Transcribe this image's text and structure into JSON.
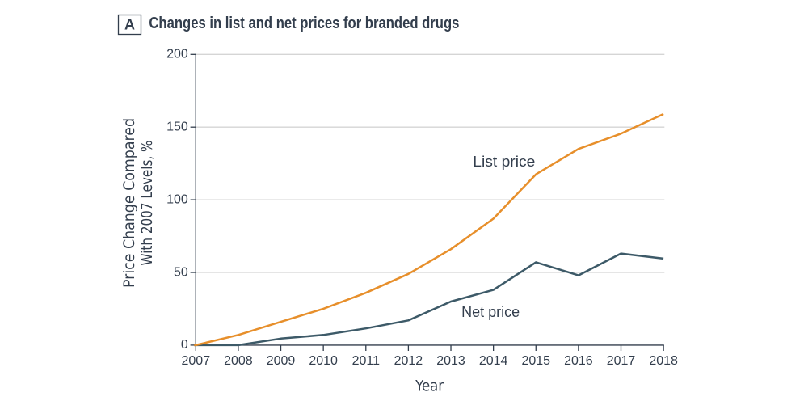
{
  "figure": {
    "panel_label": "A",
    "title": "Changes in list and net prices for branded drugs"
  },
  "chart_data": {
    "type": "line",
    "title": "Changes in list and net prices for branded drugs",
    "xlabel": "Year",
    "ylabel_lines": [
      "Price Change Compared",
      "With 2007 Levels, %"
    ],
    "x": [
      2007,
      2008,
      2009,
      2010,
      2011,
      2012,
      2013,
      2014,
      2015,
      2016,
      2017,
      2018
    ],
    "series": [
      {
        "name": "List price",
        "color": "#e78f2b",
        "values": [
          0,
          7,
          16,
          25,
          36,
          49,
          66,
          87,
          117.5,
          135,
          145.5,
          159
        ]
      },
      {
        "name": "Net price",
        "color": "#3d5a68",
        "values": [
          0,
          0,
          4.5,
          7,
          11.5,
          17,
          30,
          38,
          57,
          48,
          63,
          59.5
        ]
      }
    ],
    "xlim": [
      2007,
      2018
    ],
    "ylim": [
      0,
      200
    ],
    "yticks": [
      0,
      50,
      100,
      150,
      200
    ],
    "xticks": [
      2007,
      2008,
      2009,
      2010,
      2011,
      2012,
      2013,
      2014,
      2015,
      2016,
      2017,
      2018
    ],
    "grid": "horizontal",
    "legend": "inline-annotations",
    "annotations": [
      {
        "text": "List price",
        "series": "List price"
      },
      {
        "text": "Net price",
        "series": "Net price"
      }
    ],
    "colors": {
      "axis": "#333e4d",
      "text": "#333e4d",
      "grid": "#d5d5d5",
      "background": "#ffffff"
    }
  }
}
